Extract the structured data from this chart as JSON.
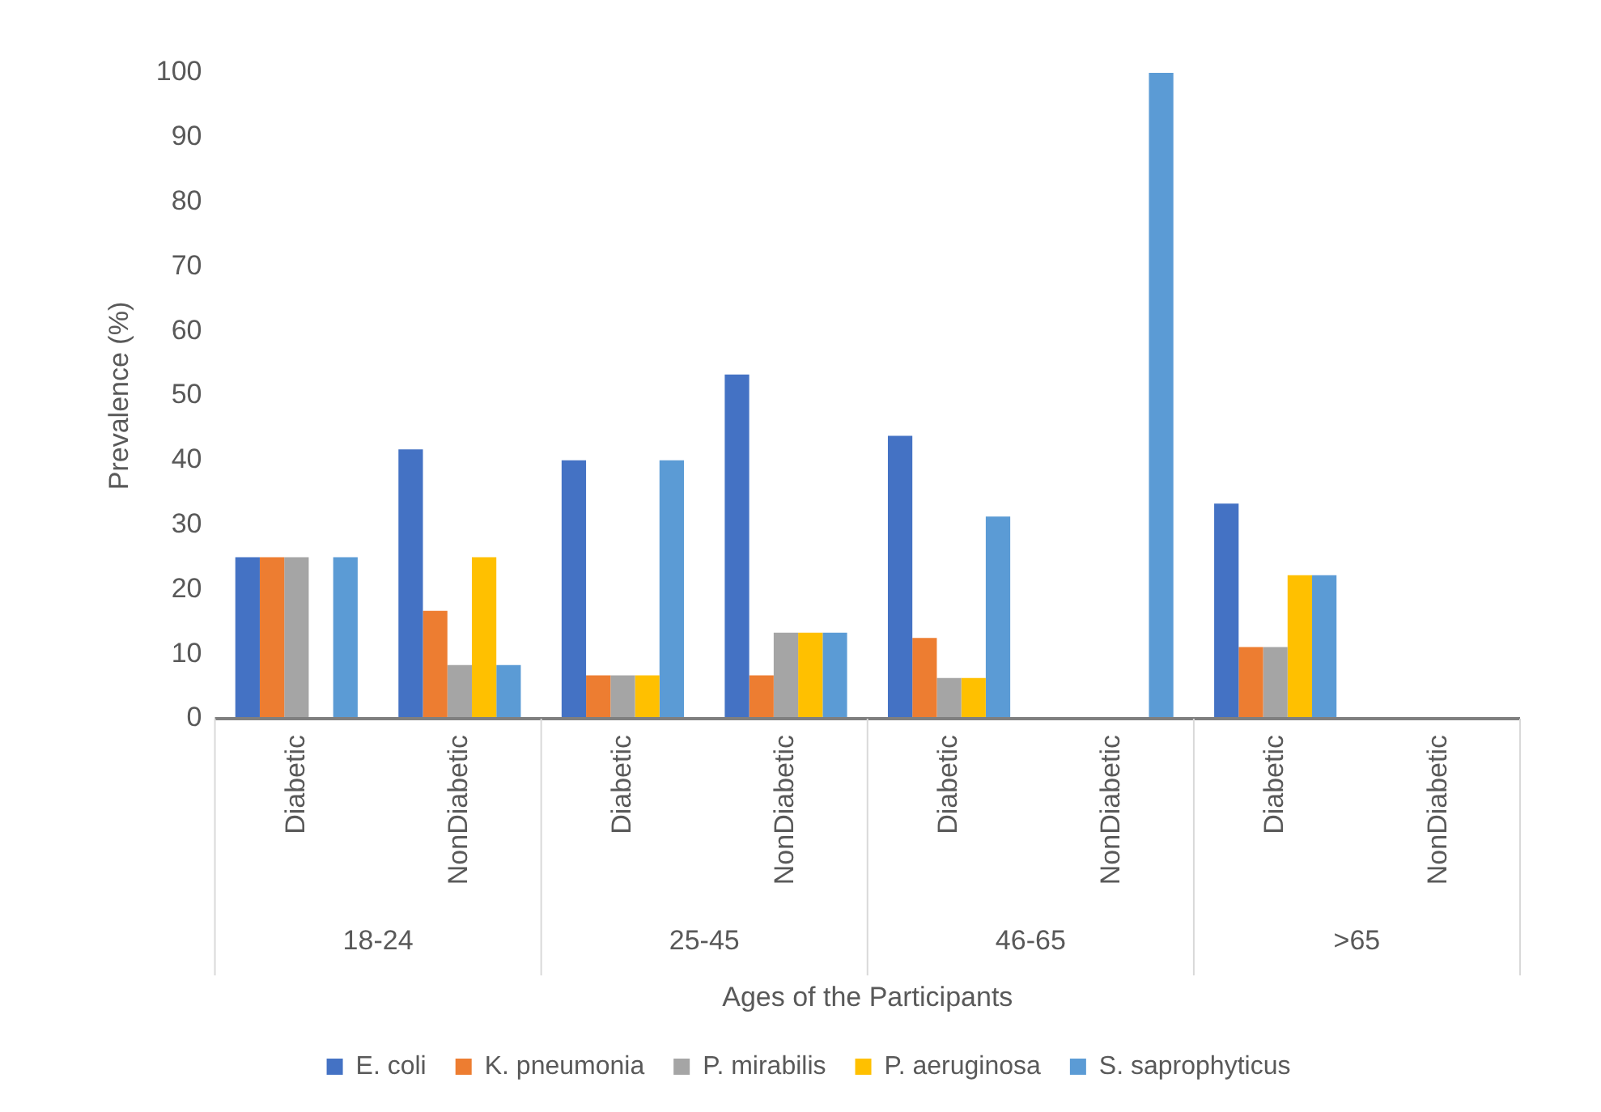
{
  "chart_data": {
    "type": "bar",
    "xlabel": "Ages of the Participants",
    "ylabel": "Prevalence (%)",
    "categories": [
      "Diabetic",
      "NonDiabetic",
      "Diabetic",
      "NonDiabetic",
      "Diabetic",
      "NonDiabetic",
      "Diabetic",
      "NonDiabetic"
    ],
    "annotations": [
      "18-24",
      "25-45",
      "46-65",
      ">65"
    ],
    "series": [
      {
        "name": "E. coli",
        "color": "#4472c4",
        "values": [
          25,
          41.7,
          40,
          53.3,
          43.8,
          0,
          33.3,
          0
        ]
      },
      {
        "name": "K. pneumonia",
        "color": "#ed7d31",
        "values": [
          25,
          16.7,
          6.7,
          6.7,
          12.5,
          0,
          11.1,
          0
        ]
      },
      {
        "name": "P. mirabilis",
        "color": "#a5a5a5",
        "values": [
          25,
          8.3,
          6.7,
          13.3,
          6.3,
          0,
          11.1,
          0
        ]
      },
      {
        "name": "P. aeruginosa",
        "color": "#ffc000",
        "values": [
          0,
          25,
          6.7,
          13.3,
          6.3,
          0,
          22.2,
          0
        ]
      },
      {
        "name": "S. saprophyticus",
        "color": "#5b9bd5",
        "values": [
          25,
          8.3,
          40,
          13.3,
          31.3,
          100,
          22.2,
          0
        ]
      }
    ],
    "ylim": [
      0,
      100
    ],
    "yticks": [
      0,
      10,
      20,
      30,
      40,
      50,
      60,
      70,
      80,
      90,
      100
    ],
    "grid": false,
    "legend": "bottom"
  }
}
